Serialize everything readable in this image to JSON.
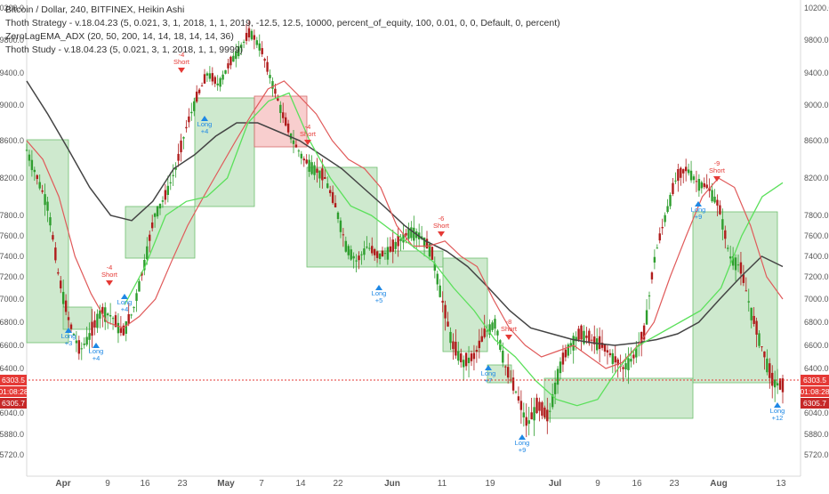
{
  "legend": {
    "line1": "Bitcoin / Dollar, 240, BITFINEX, Heikin Ashi",
    "line2": "Thoth Strategy - v.18.04.23 (5, 0.021, 3, 1, 2018, 1, 1, 2019, -12.5, 12.5, 10000, percent_of_equity, 100, 0.01, 0, 0, Default, 0, percent)",
    "line3": "ZeroLagEMA_ADX (20, 50, 200, 14, 14, 18, 14, 14, 36)",
    "line4": "Thoth Study - v.18.04.23 (5, 0.021, 3, 1, 2018, 1, 1, 9999)"
  },
  "colors": {
    "bull": "#2e9e2e",
    "bear": "#b01c1c",
    "win_box": "#a6d7a6",
    "loss_box": "#f3a6a6",
    "long": "#1e88e5",
    "short": "#e53935",
    "ma_long": "#444444",
    "ma_mid": "#e05a5a",
    "ma_fast": "#5be05b",
    "price_line": "#e53935"
  },
  "y_ticks_left": [
    "10200.0",
    "9800.0",
    "9400.0",
    "9000.0",
    "8600.0",
    "8200.0",
    "7800.0",
    "7600.0",
    "7400.0",
    "7200.0",
    "7000.0",
    "6800.0",
    "6600.0",
    "6400.0",
    "6040.0",
    "5880.0",
    "5720.0"
  ],
  "y_ticks_right": [
    "10200.0",
    "9800.0",
    "9400.0",
    "9000.0",
    "8600.0",
    "8200.0",
    "7800.0",
    "7600.0",
    "7400.0",
    "7200.0",
    "7000.0",
    "6800.0",
    "6600.0",
    "6400.0",
    "6040.0",
    "5880.0",
    "5720.0"
  ],
  "x_ticks": [
    "Apr",
    "9",
    "16",
    "23",
    "May",
    "7",
    "14",
    "22",
    "Jun",
    "11",
    "19",
    "Jul",
    "9",
    "16",
    "23",
    "Aug",
    "13"
  ],
  "price_labels": {
    "last": "6303.5",
    "countdown": "01:08:28",
    "open": "6305.7"
  },
  "chart_data": {
    "type": "line",
    "title": "Bitcoin / Dollar, 240, BITFINEX, Heikin Ashi",
    "x_axis": [
      "Apr",
      "9",
      "16",
      "23",
      "May",
      "7",
      "14",
      "22",
      "Jun",
      "11",
      "19",
      "Jul",
      "9",
      "16",
      "23",
      "Aug",
      "13"
    ],
    "y_axis_ticks": [
      10200,
      9800,
      9400,
      9000,
      8600,
      8200,
      7800,
      7600,
      7400,
      7200,
      7000,
      6800,
      6600,
      6400,
      6040,
      5880,
      5720
    ],
    "last_price": 6303.5,
    "series": [
      {
        "values": [
          8500,
          8200,
          7900,
          7200,
          6800,
          6550,
          6700,
          6900,
          6850,
          6700,
          6900,
          7300,
          7800,
          8000,
          8300,
          8750,
          9100,
          9400,
          9250,
          9500,
          9700,
          9900,
          9700,
          9300,
          8900,
          8600,
          8400,
          8300,
          8200,
          7900,
          7500,
          7350,
          7500,
          7400,
          7450,
          7550,
          7650,
          7600,
          7450,
          7000,
          6600,
          6450,
          6500,
          6700,
          6800,
          6400,
          6200,
          5950,
          6100,
          6000,
          6400,
          6600,
          6700,
          6650,
          6600,
          6500,
          6400,
          6500,
          6700,
          7400,
          7800,
          8200,
          8300,
          8150,
          8100,
          7900,
          7400,
          7300,
          6900,
          6600,
          6300,
          6250
        ]
      },
      {
        "values": [
          9300,
          8900,
          8500,
          8100,
          7800,
          7750,
          7950,
          8300,
          8450,
          8650,
          8800,
          8800,
          8700,
          8600,
          8450,
          8300,
          8100,
          7900,
          7700,
          7550,
          7450,
          7300,
          7100,
          6900,
          6750,
          6700,
          6650,
          6620,
          6600,
          6620,
          6650,
          6700,
          6800,
          7000,
          7200,
          7400,
          7300
        ]
      },
      {
        "values": [
          8600,
          8400,
          8000,
          7400,
          7050,
          6800,
          6750,
          6850,
          7000,
          7350,
          7700,
          8000,
          8300,
          8600,
          8900,
          9200,
          9300,
          9100,
          8900,
          8600,
          8400,
          8300,
          8100,
          7700,
          7500,
          7500,
          7550,
          7400,
          7300,
          7000,
          6750,
          6600,
          6500,
          6550,
          6600,
          6500,
          6400,
          6450,
          6600,
          6800,
          7200,
          7600,
          8000,
          8200,
          8100,
          7700,
          7200,
          7000
        ]
      },
      {
        "values": [
          6950,
          7300,
          7800,
          7950,
          8000,
          8200,
          8800,
          9050,
          9150,
          8600,
          8200,
          7900,
          7800,
          7650,
          7500,
          7350,
          7100,
          6900,
          6650,
          6500,
          6300,
          6150,
          6100,
          6150,
          6400,
          6600,
          6700,
          6800,
          6900,
          7100,
          7600,
          8000,
          8150
        ]
      }
    ],
    "markers": [
      {
        "label": "Long",
        "qty": "+3"
      },
      {
        "label": "Long",
        "qty": "+4"
      },
      {
        "label": "Short",
        "qty": "-4"
      },
      {
        "label": "Long",
        "qty": "+4"
      },
      {
        "label": "Short",
        "qty": "-4"
      },
      {
        "label": "Long",
        "qty": "+4"
      },
      {
        "label": "Short",
        "qty": "-4"
      },
      {
        "label": "Long",
        "qty": "+5"
      },
      {
        "label": "Short",
        "qty": "-6"
      },
      {
        "label": "Long",
        "qty": "+7"
      },
      {
        "label": "Short",
        "qty": "-8"
      },
      {
        "label": "Long",
        "qty": "+9"
      },
      {
        "label": "Short",
        "qty": "-9"
      },
      {
        "label": "Long",
        "qty": "+9"
      },
      {
        "label": "Long",
        "qty": "+12"
      }
    ]
  }
}
